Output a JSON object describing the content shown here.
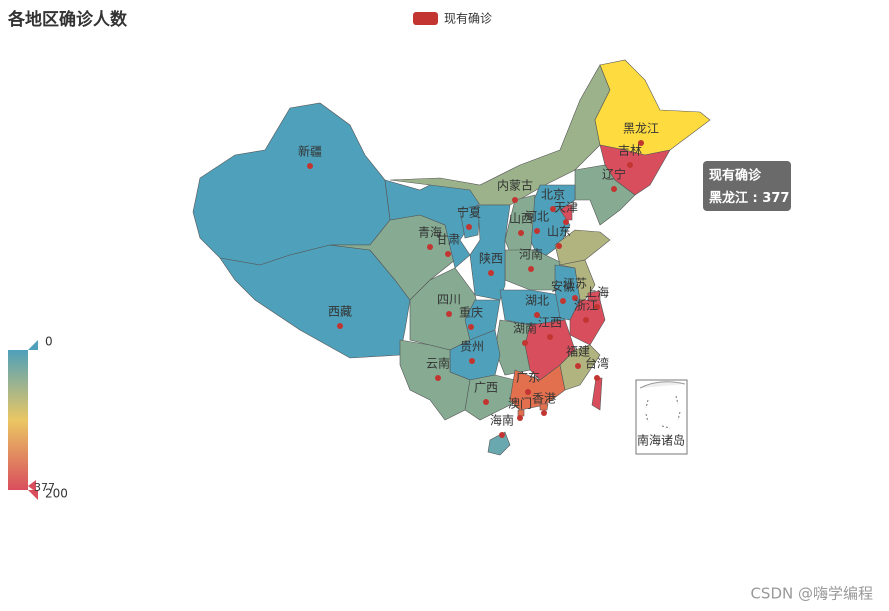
{
  "chart_data": {
    "type": "map",
    "title": "各地区确诊人数",
    "legend": [
      {
        "name": "现有确诊",
        "color": "#c23531"
      }
    ],
    "regions": [
      {
        "name": "新疆",
        "value": 5,
        "color": "#4fa0ba"
      },
      {
        "name": "西藏",
        "value": 5,
        "color": "#4fa0ba"
      },
      {
        "name": "青海",
        "value": 50,
        "color": "#86ab92"
      },
      {
        "name": "甘肃",
        "value": 5,
        "color": "#4fa0ba"
      },
      {
        "name": "宁夏",
        "value": 5,
        "color": "#4fa0ba"
      },
      {
        "name": "内蒙古",
        "value": 70,
        "color": "#9bb28a"
      },
      {
        "name": "黑龙江",
        "value": 377,
        "color": "#fedc3f"
      },
      {
        "name": "吉林",
        "value": 250,
        "color": "#d94e5d"
      },
      {
        "name": "辽宁",
        "value": 50,
        "color": "#86ab92"
      },
      {
        "name": "北京",
        "value": 5,
        "color": "#4fa0ba"
      },
      {
        "name": "天津",
        "value": 250,
        "color": "#d94e5d"
      },
      {
        "name": "河北",
        "value": 5,
        "color": "#4fa0ba"
      },
      {
        "name": "山西",
        "value": 50,
        "color": "#86ab92"
      },
      {
        "name": "山东",
        "value": 90,
        "color": "#b1b47e"
      },
      {
        "name": "河南",
        "value": 50,
        "color": "#86ab92"
      },
      {
        "name": "陕西",
        "value": 5,
        "color": "#4fa0ba"
      },
      {
        "name": "四川",
        "value": 50,
        "color": "#86ab92"
      },
      {
        "name": "重庆",
        "value": 5,
        "color": "#4fa0ba"
      },
      {
        "name": "湖北",
        "value": 5,
        "color": "#4fa0ba"
      },
      {
        "name": "安徽",
        "value": 5,
        "color": "#4fa0ba"
      },
      {
        "name": "江苏",
        "value": 90,
        "color": "#b1b47e"
      },
      {
        "name": "上海",
        "value": 250,
        "color": "#d94e5d"
      },
      {
        "name": "浙江",
        "value": 250,
        "color": "#d94e5d"
      },
      {
        "name": "江西",
        "value": 250,
        "color": "#d94e5d"
      },
      {
        "name": "湖南",
        "value": 50,
        "color": "#86ab92"
      },
      {
        "name": "贵州",
        "value": 5,
        "color": "#4fa0ba"
      },
      {
        "name": "云南",
        "value": 50,
        "color": "#86ab92"
      },
      {
        "name": "广西",
        "value": 50,
        "color": "#86ab92"
      },
      {
        "name": "广东",
        "value": 170,
        "color": "#e2704e"
      },
      {
        "name": "福建",
        "value": 90,
        "color": "#b1b47e"
      },
      {
        "name": "台湾",
        "value": 250,
        "color": "#d94e5d"
      },
      {
        "name": "香港",
        "value": 170,
        "color": "#e2704e"
      },
      {
        "name": "澳门",
        "value": 170,
        "color": "#e2704e"
      },
      {
        "name": "海南",
        "value": 20,
        "color": "#6aa8b0"
      }
    ],
    "visual_map": {
      "range": [
        0,
        200
      ],
      "ticks": [
        0,
        200
      ],
      "colors": [
        "#4fa0ba",
        "#eac763",
        "#d94e5d"
      ]
    },
    "tooltip_separator": " : ",
    "inset_label": "南海诸岛",
    "watermark": "CSDN @嗨学编程"
  }
}
